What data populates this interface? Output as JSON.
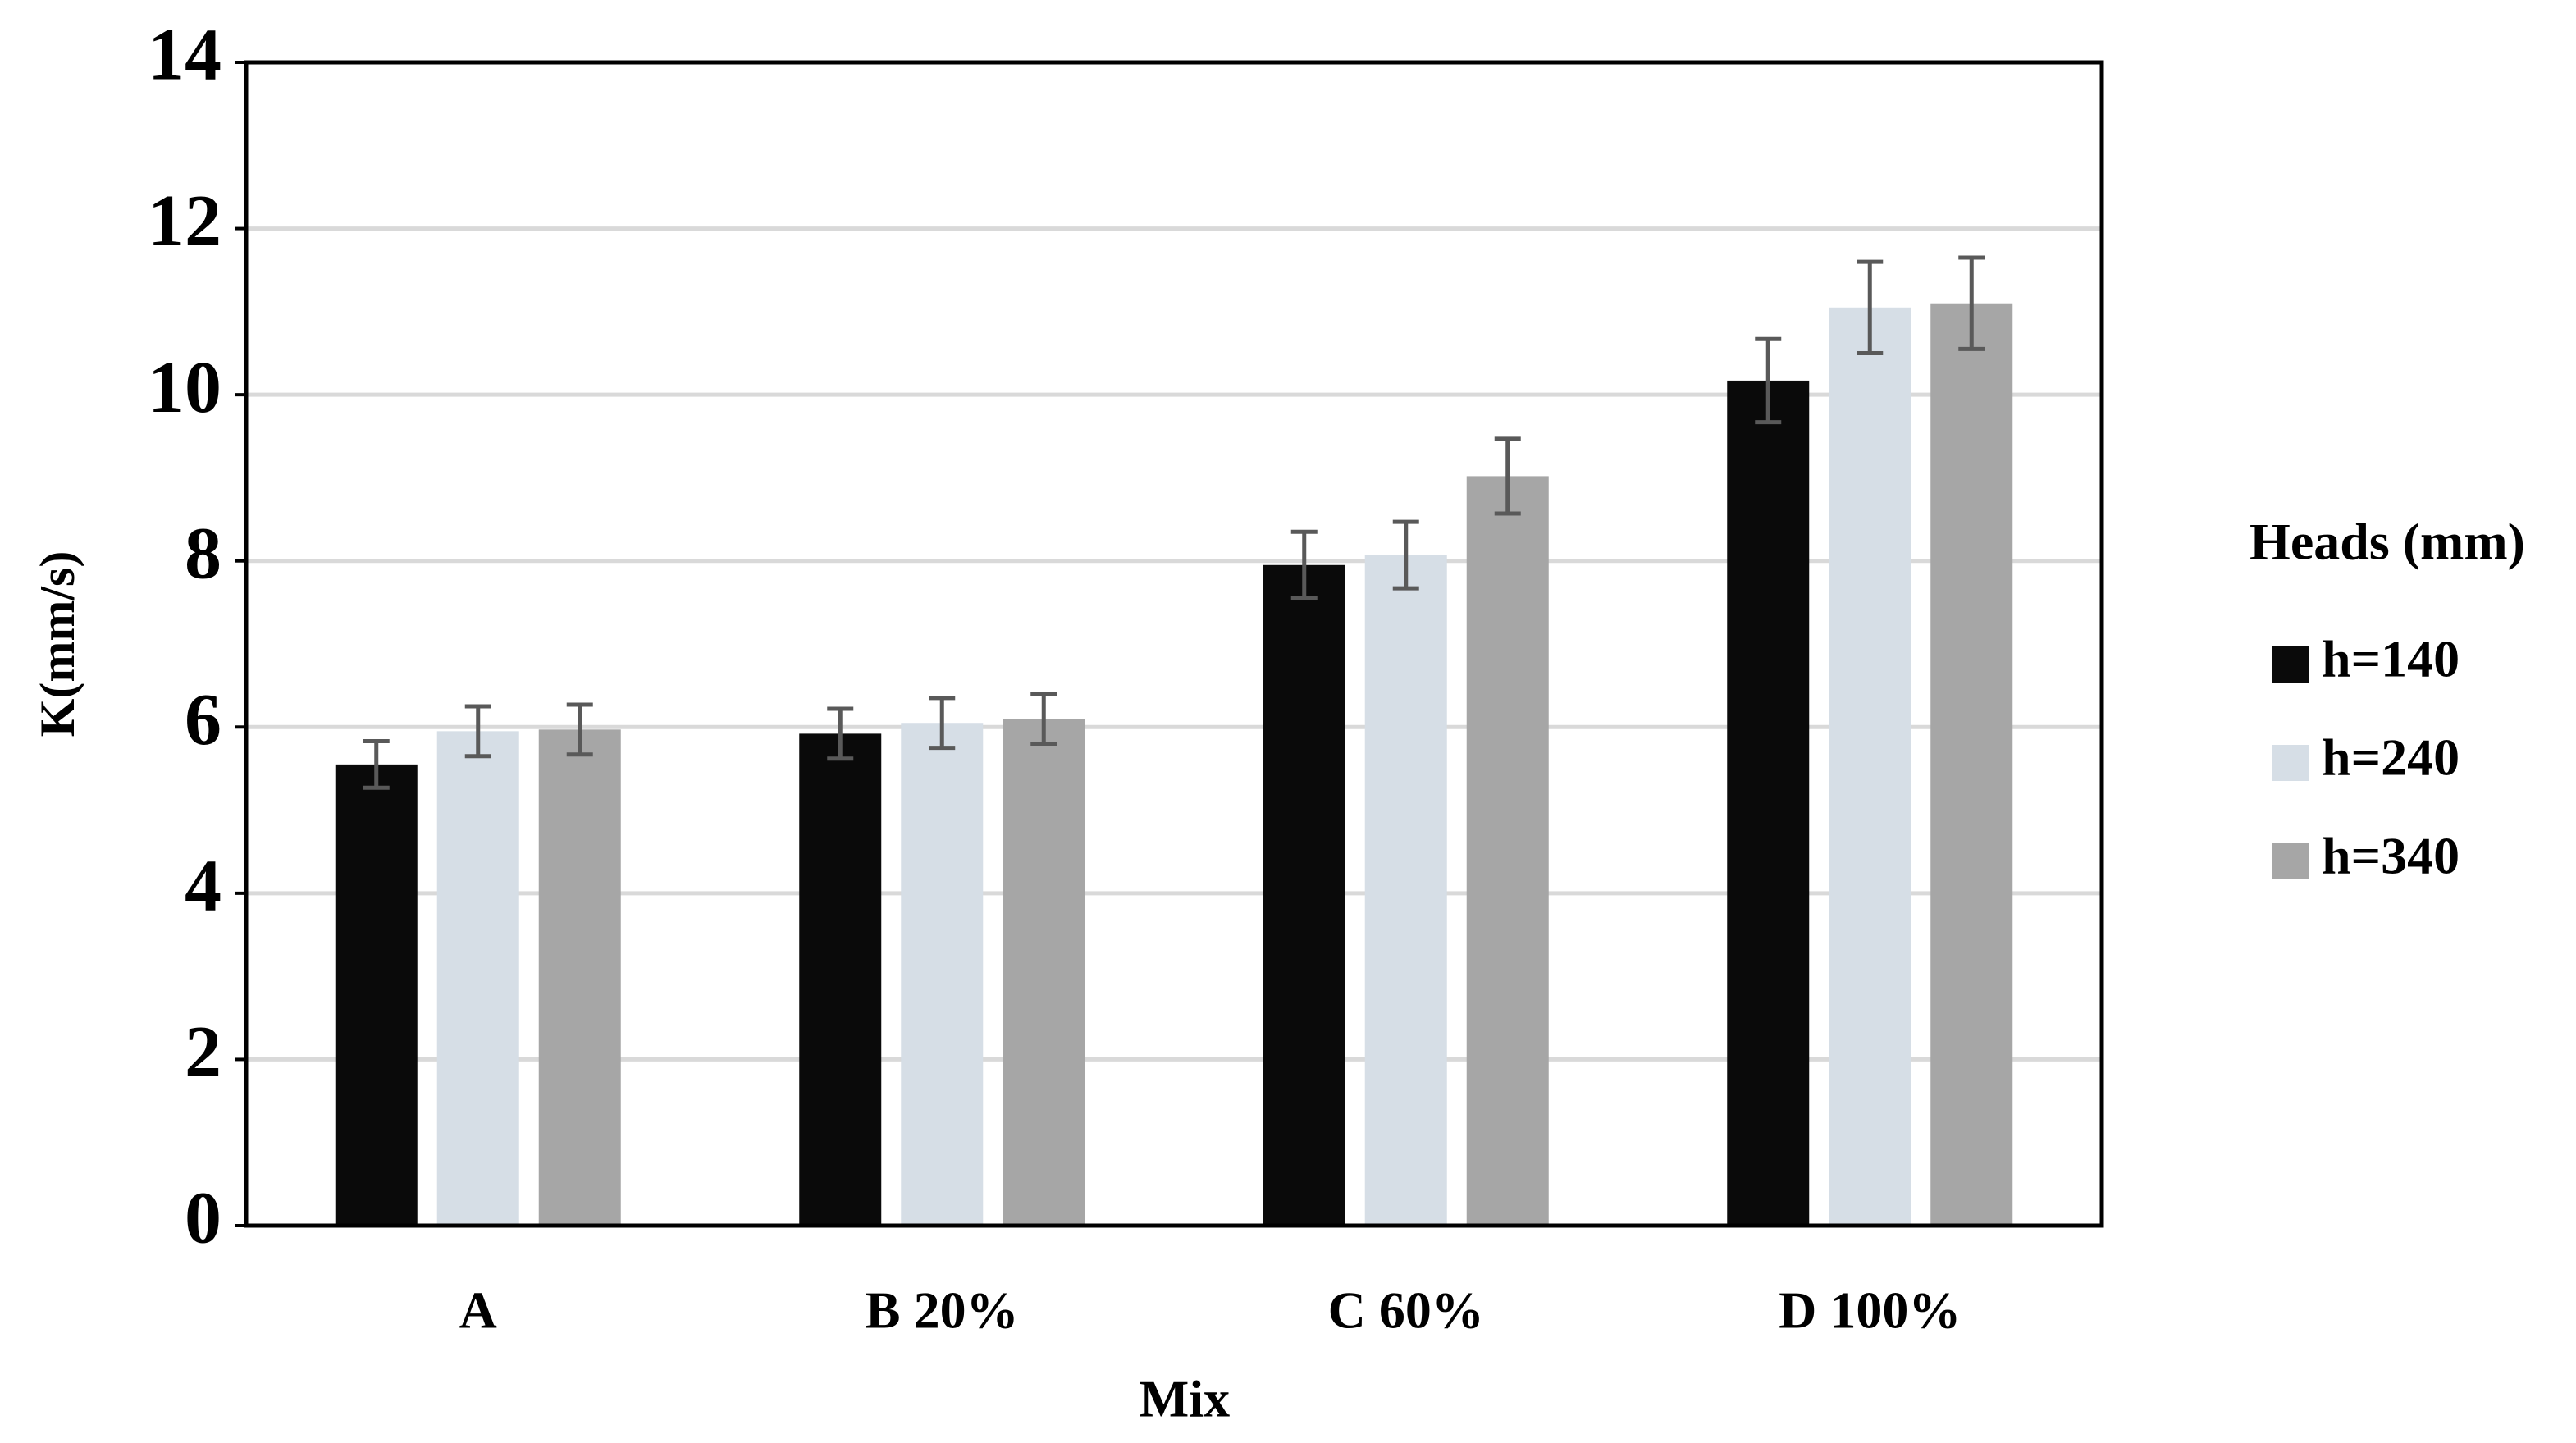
{
  "chart_data": {
    "type": "bar",
    "x_label": "Mix",
    "y_label": "K(mm/s)",
    "categories": [
      "A",
      "B 20%",
      "C 60%",
      "D 100%"
    ],
    "series": [
      {
        "name": "h=140",
        "color": "#0a0a0a",
        "values": [
          5.55,
          5.92,
          7.95,
          10.17
        ],
        "errors": [
          0.28,
          0.3,
          0.4,
          0.5
        ]
      },
      {
        "name": "h=240",
        "color": "#d6dee6",
        "values": [
          5.95,
          6.05,
          8.07,
          11.05
        ],
        "errors": [
          0.3,
          0.3,
          0.4,
          0.55
        ]
      },
      {
        "name": "h=340",
        "color": "#a6a6a6",
        "values": [
          5.97,
          6.1,
          9.02,
          11.1
        ],
        "errors": [
          0.3,
          0.3,
          0.45,
          0.55
        ]
      }
    ],
    "legend_title": "Heads (mm)",
    "legend": "right",
    "ylim": [
      0,
      14
    ],
    "yticks": [
      0,
      2,
      4,
      6,
      8,
      10,
      12,
      14
    ],
    "grid": true
  }
}
